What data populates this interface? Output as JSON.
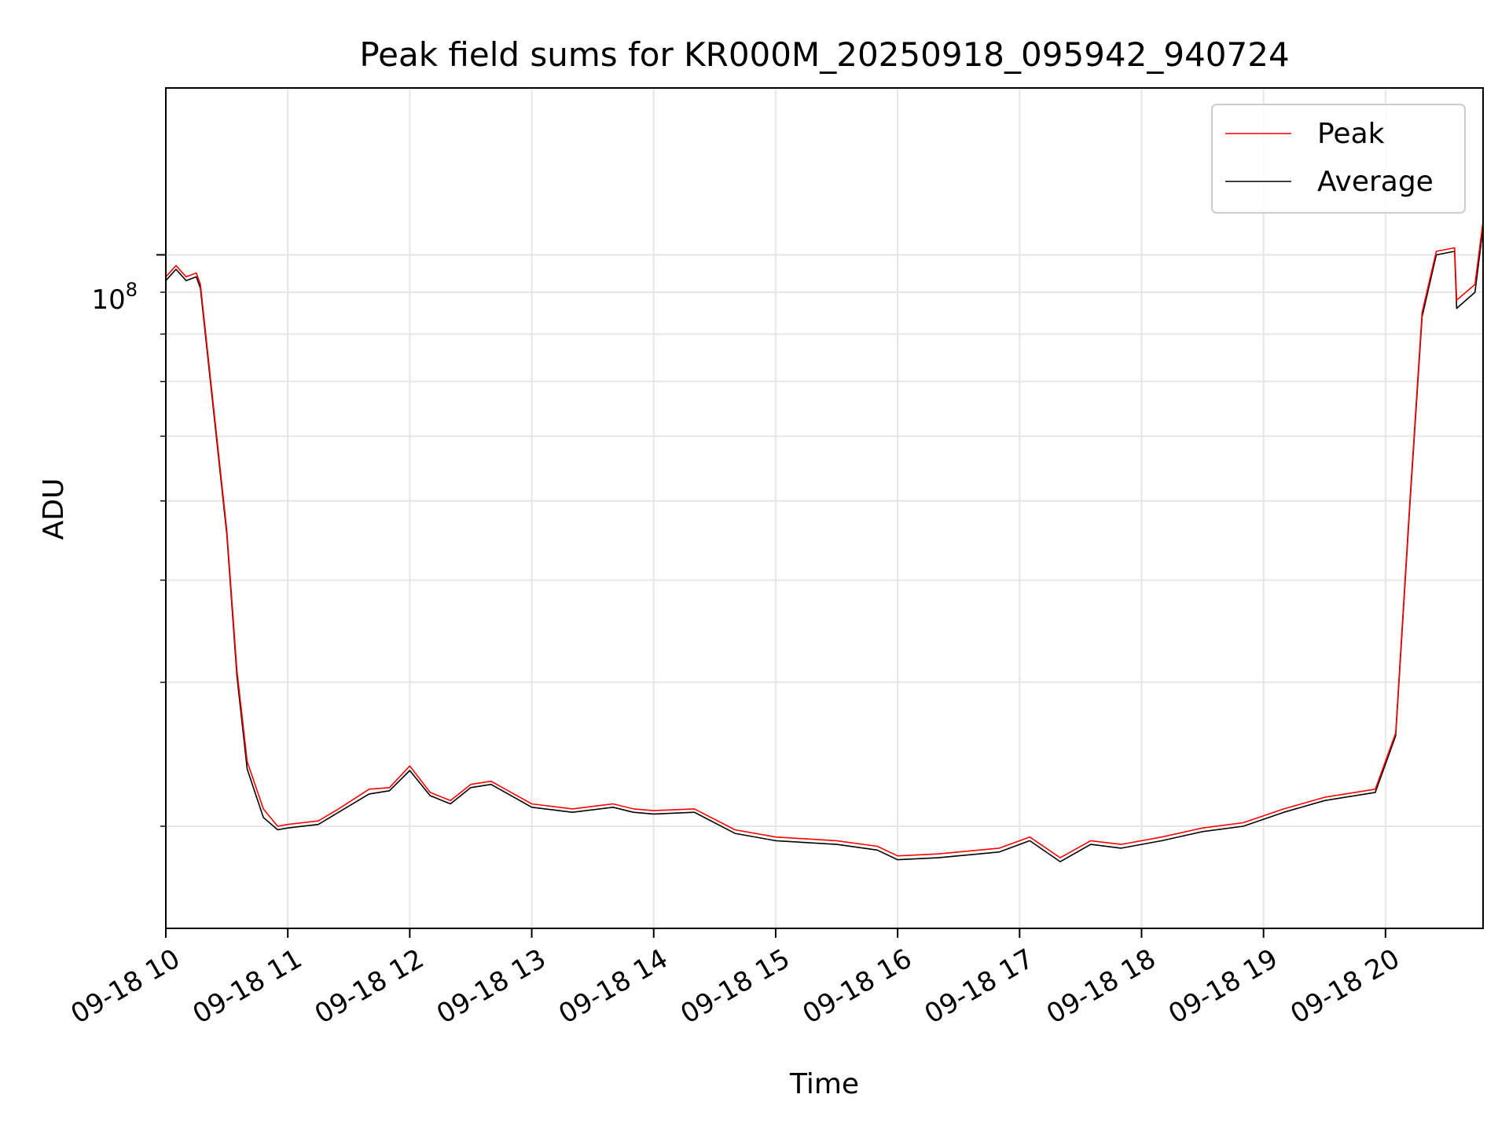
{
  "chart_data": {
    "type": "line",
    "title": "Peak field sums for KR000M_20250918_095942_940724",
    "xlabel": "Time",
    "ylabel": "ADU",
    "yscale": "log",
    "ylim": [
      15000000,
      160000000
    ],
    "xlim": [
      "2025-09-18 10:00",
      "2025-09-18 20:48"
    ],
    "grid": true,
    "legend_position": "upper right",
    "x_tick_labels": [
      "09-18 10",
      "09-18 11",
      "09-18 12",
      "09-18 13",
      "09-18 14",
      "09-18 15",
      "09-18 16",
      "09-18 17",
      "09-18 18",
      "09-18 19",
      "09-18 20"
    ],
    "y_tick_labels": [
      {
        "base": "10",
        "exponent": "8",
        "value": 100000000
      }
    ],
    "x": [
      "2025-09-18 10:00",
      "2025-09-18 10:05",
      "2025-09-18 10:10",
      "2025-09-18 10:15",
      "2025-09-18 10:17",
      "2025-09-18 10:30",
      "2025-09-18 10:35",
      "2025-09-18 10:40",
      "2025-09-18 10:48",
      "2025-09-18 10:55",
      "2025-09-18 11:00",
      "2025-09-18 11:15",
      "2025-09-18 11:25",
      "2025-09-18 11:40",
      "2025-09-18 11:50",
      "2025-09-18 12:00",
      "2025-09-18 12:10",
      "2025-09-18 12:20",
      "2025-09-18 12:30",
      "2025-09-18 12:40",
      "2025-09-18 13:00",
      "2025-09-18 13:20",
      "2025-09-18 13:40",
      "2025-09-18 13:50",
      "2025-09-18 14:00",
      "2025-09-18 14:20",
      "2025-09-18 14:40",
      "2025-09-18 15:00",
      "2025-09-18 15:30",
      "2025-09-18 15:50",
      "2025-09-18 16:00",
      "2025-09-18 16:20",
      "2025-09-18 16:50",
      "2025-09-18 17:05",
      "2025-09-18 17:20",
      "2025-09-18 17:35",
      "2025-09-18 17:50",
      "2025-09-18 18:10",
      "2025-09-18 18:30",
      "2025-09-18 18:50",
      "2025-09-18 19:10",
      "2025-09-18 19:30",
      "2025-09-18 19:55",
      "2025-09-18 20:05",
      "2025-09-18 20:12",
      "2025-09-18 20:18",
      "2025-09-18 20:25",
      "2025-09-18 20:34",
      "2025-09-18 20:35",
      "2025-09-18 20:44",
      "2025-09-18 20:48"
    ],
    "series": [
      {
        "name": "Peak",
        "color": "#ff0000",
        "values": [
          94000000,
          97000000,
          94000000,
          95000000,
          92000000,
          46000000,
          31000000,
          24000000,
          21000000,
          20000000,
          20100000,
          20300000,
          21000000,
          22200000,
          22300000,
          23700000,
          22000000,
          21500000,
          22500000,
          22700000,
          21300000,
          21000000,
          21300000,
          21000000,
          20900000,
          21000000,
          19800000,
          19400000,
          19200000,
          18900000,
          18400000,
          18500000,
          18800000,
          19400000,
          18300000,
          19200000,
          19000000,
          19400000,
          19900000,
          20200000,
          21000000,
          21700000,
          22200000,
          26000000,
          50000000,
          85000000,
          101000000,
          102000000,
          88000000,
          92000000,
          110000000
        ]
      },
      {
        "name": "Average",
        "color": "#000000",
        "values": [
          93000000,
          96000000,
          93000000,
          94000000,
          91000000,
          45500000,
          30500000,
          23500000,
          20500000,
          19800000,
          19900000,
          20100000,
          20800000,
          21900000,
          22100000,
          23400000,
          21800000,
          21300000,
          22300000,
          22500000,
          21100000,
          20800000,
          21100000,
          20800000,
          20700000,
          20800000,
          19600000,
          19200000,
          19000000,
          18700000,
          18200000,
          18300000,
          18600000,
          19200000,
          18100000,
          19000000,
          18800000,
          19200000,
          19700000,
          20000000,
          20800000,
          21500000,
          22000000,
          25800000,
          49500000,
          84000000,
          100000000,
          101000000,
          86000000,
          90000000,
          108000000
        ]
      }
    ]
  }
}
